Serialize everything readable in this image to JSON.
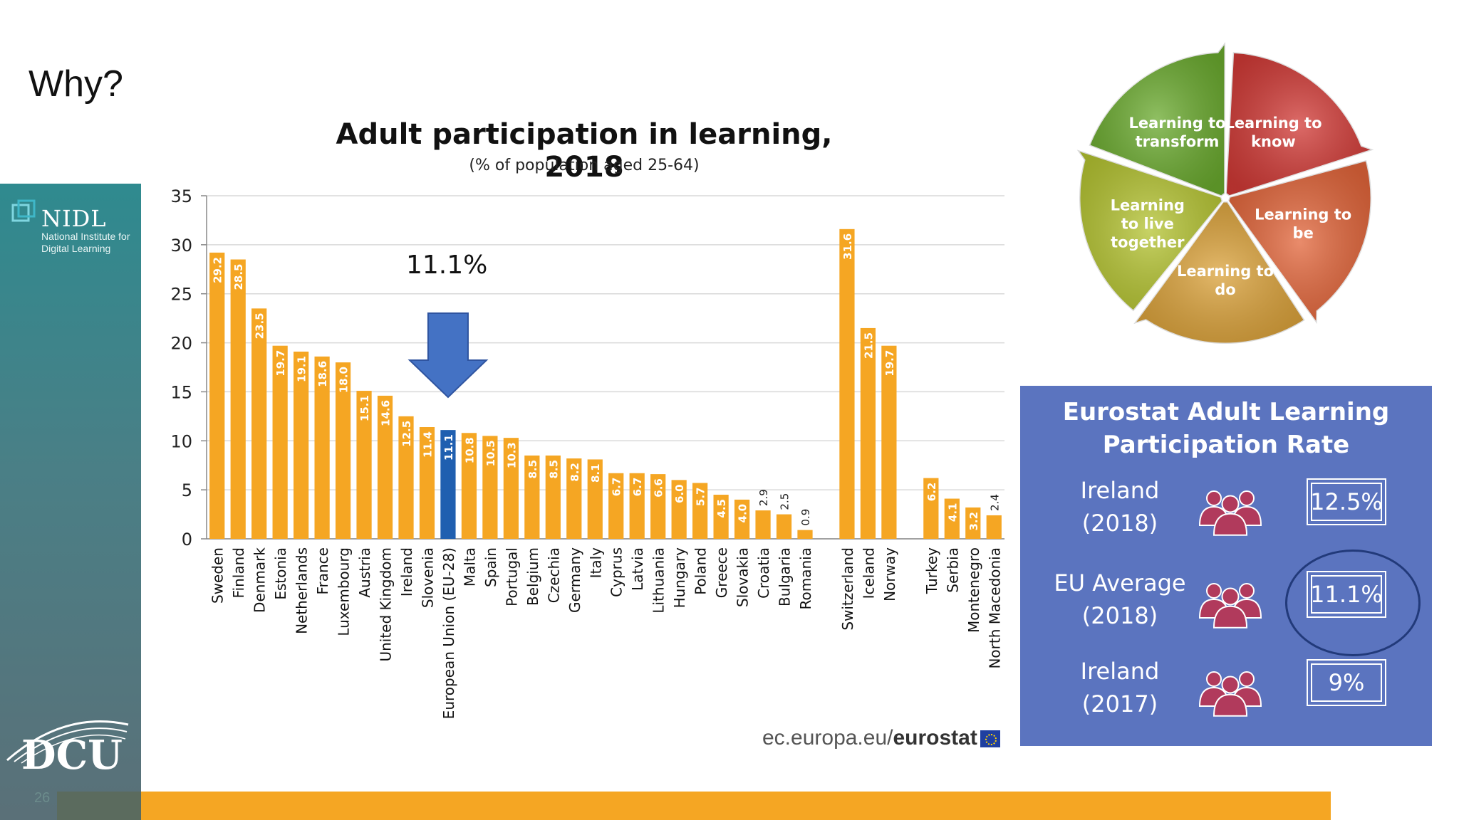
{
  "slide": {
    "title": "Why?",
    "page_number": "26"
  },
  "branding": {
    "nidl_name": "NIDL",
    "nidl_subtitle": "National Institute for Digital Learning",
    "dcu": "DCU"
  },
  "annotation": {
    "text": "11.1%"
  },
  "source": {
    "prefix": "ec.europa.eu/",
    "bold": "eurostat"
  },
  "chart_data": {
    "type": "bar",
    "title": "Adult participation in learning, 2018",
    "subtitle": "(% of population aged 25-64)",
    "ylim": [
      0,
      35
    ],
    "yticks": [
      0,
      5,
      10,
      15,
      20,
      25,
      30,
      35
    ],
    "grid": true,
    "legend": "none",
    "categories": [
      "Sweden",
      "Finland",
      "Denmark",
      "Estonia",
      "Netherlands",
      "France",
      "Luxembourg",
      "Austria",
      "United Kingdom",
      "Ireland",
      "Slovenia",
      "European Union (EU-28)",
      "Malta",
      "Spain",
      "Portugal",
      "Belgium",
      "Czechia",
      "Germany",
      "Italy",
      "Cyprus",
      "Latvia",
      "Lithuania",
      "Hungary",
      "Poland",
      "Greece",
      "Slovakia",
      "Croatia",
      "Bulgaria",
      "Romania",
      "",
      "Switzerland",
      "Iceland",
      "Norway",
      "",
      "Turkey",
      "Serbia",
      "Montenegro",
      "North Macedonia"
    ],
    "values": [
      29.2,
      28.5,
      23.5,
      19.7,
      19.1,
      18.6,
      18.0,
      15.1,
      14.6,
      12.5,
      11.4,
      11.1,
      10.8,
      10.5,
      10.3,
      8.5,
      8.5,
      8.2,
      8.1,
      6.7,
      6.7,
      6.6,
      6.0,
      5.7,
      4.5,
      4.0,
      2.9,
      2.5,
      0.9,
      null,
      31.6,
      21.5,
      19.7,
      null,
      6.2,
      4.1,
      3.2,
      2.4
    ],
    "value_labels": [
      "29.2",
      "28.5",
      "23.5",
      "19.7",
      "19.1",
      "18.6",
      "18.0",
      "15.1",
      "14.6",
      "12.5",
      "11.4",
      "11.1",
      "10.8",
      "10.5",
      "10.3",
      "8.5",
      "8.5",
      "8.2",
      "8.1",
      "6.7",
      "6.7",
      "6.6",
      "6.0",
      "5.7",
      "4.5",
      "4.0",
      "2.9",
      "2.5",
      "0.9",
      "",
      "31.6",
      "21.5",
      "19.7",
      "",
      "6.2",
      "4.1",
      "3.2",
      "2.4"
    ],
    "highlight_index": 11,
    "colors": {
      "bar": "#f5a623",
      "highlight": "#1f5fb0",
      "arrow": "#4472c4"
    }
  },
  "wheel": {
    "segments": [
      {
        "label": "Learning to know",
        "color": "#d13a36"
      },
      {
        "label": "Learning to be",
        "color": "#e2653a"
      },
      {
        "label": "Learning to do",
        "color": "#dba23a"
      },
      {
        "label": "Learning to live together",
        "color": "#b5c432"
      },
      {
        "label": "Learning to transform",
        "color": "#6aaa2e"
      }
    ]
  },
  "eurostat_panel": {
    "title_line1": "Eurostat Adult Learning",
    "title_line2": "Participation Rate",
    "rows": [
      {
        "label1": "Ireland",
        "label2": "(2018)",
        "value": "12.5%"
      },
      {
        "label1": "EU Average",
        "label2": "(2018)",
        "value": "11.1%"
      },
      {
        "label1": "Ireland",
        "label2": "(2017)",
        "value": "9%"
      }
    ],
    "colors": {
      "background": "#5b74bf",
      "people": "#b13a5c"
    }
  }
}
